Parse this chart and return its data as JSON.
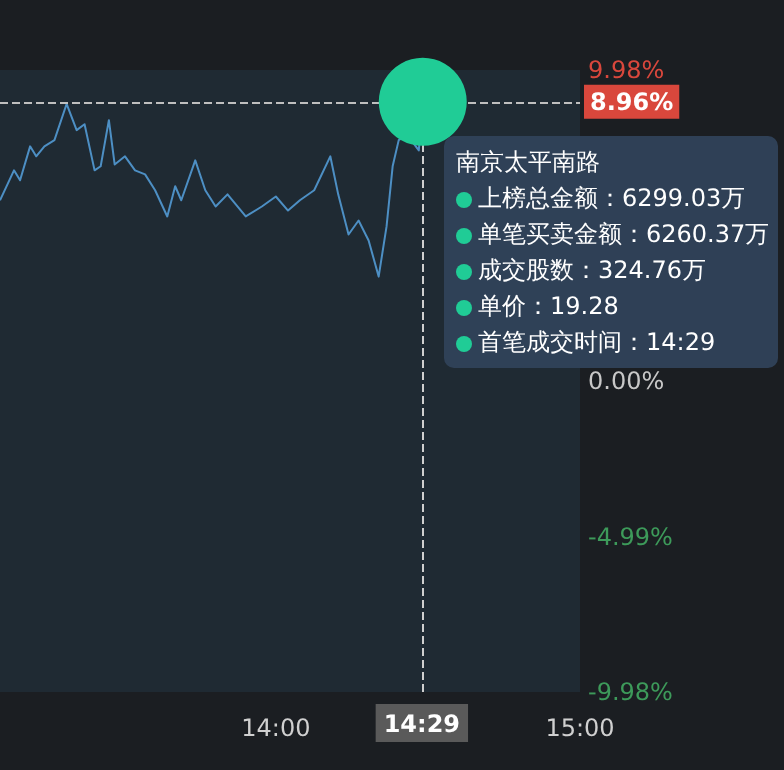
{
  "chart_data": {
    "type": "line",
    "x": [
      13.093,
      13.139,
      13.159,
      13.192,
      13.212,
      13.239,
      13.272,
      13.312,
      13.345,
      13.371,
      13.404,
      13.424,
      13.451,
      13.47,
      13.504,
      13.537,
      13.57,
      13.603,
      13.643,
      13.669,
      13.689,
      13.735,
      13.768,
      13.802,
      13.841,
      13.901,
      13.954,
      14.0,
      14.04,
      14.079,
      14.126,
      14.179,
      14.205,
      14.239,
      14.272,
      14.305,
      14.338,
      14.364,
      14.384,
      14.404,
      14.43,
      14.47,
      14.483
    ],
    "series": [
      {
        "color": "#4d8fc4",
        "values": [
          5.8,
          6.76,
          6.44,
          7.53,
          7.21,
          7.53,
          7.73,
          8.89,
          8.05,
          8.24,
          6.76,
          6.89,
          8.37,
          6.95,
          7.21,
          6.76,
          6.63,
          6.12,
          5.28,
          6.25,
          5.8,
          7.08,
          6.12,
          5.6,
          5.99,
          5.28,
          5.6,
          5.92,
          5.47,
          5.8,
          6.12,
          7.21,
          5.99,
          4.7,
          5.15,
          4.51,
          3.35,
          4.96,
          6.89,
          7.73,
          7.92,
          7.4,
          8.96
        ]
      },
      {
        "type": "scatter",
        "marker": "circle",
        "color": "#20cc96",
        "x": [
          14.483
        ],
        "values": [
          8.96
        ]
      }
    ],
    "xlim": [
      13.093,
      15.0
    ],
    "xticks": [
      {
        "value": 14,
        "label": "14:00"
      },
      {
        "value": 15,
        "label": "15:00"
      }
    ],
    "ylim": [
      -9.98,
      9.98
    ],
    "yticks": [
      {
        "value": 9.98,
        "label": "9.98%"
      },
      {
        "value": 0,
        "label": "0.00%"
      },
      {
        "value": -4.99,
        "label": "-4.99%"
      },
      {
        "value": -9.98,
        "label": "-9.98%"
      }
    ],
    "grid": false,
    "marker": "none",
    "ref_lines": [
      {
        "axis": "y",
        "value": 8.96,
        "label": "8.96%",
        "color": "#bfbfbf",
        "line_style": "dashed"
      },
      {
        "axis": "x",
        "value": 14.483,
        "label": "14:29",
        "color": "#cfcfcf",
        "line_style": "dashed"
      }
    ],
    "annotations": [
      "南京太平南路",
      "上榜总金额：6299.03万",
      "单笔买卖金额：6260.37万",
      "成交股数：324.76万",
      "单价：19.28",
      "首笔成交时间：14:29"
    ]
  }
}
